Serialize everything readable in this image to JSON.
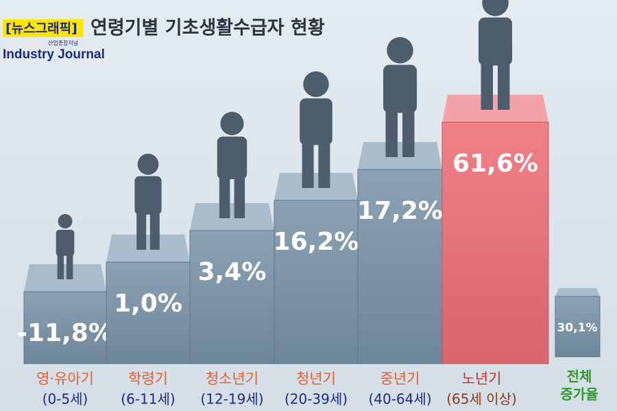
{
  "header": {
    "tag": "[뉴스그래픽]",
    "title": "연령기별 기초생활수급자 현황",
    "logo_sub": "산업종합저널",
    "logo": "Industry Journal"
  },
  "items": [
    {
      "value": "-11,8%",
      "name": "영·유아기",
      "range": "(0-5세)"
    },
    {
      "value": "1,0%",
      "name": "학령기",
      "range": "(6-11세)"
    },
    {
      "value": "3,4%",
      "name": "청소년기",
      "range": "(12-19세)"
    },
    {
      "value": "16,2%",
      "name": "청년기",
      "range": "(20-39세)"
    },
    {
      "value": "17,2%",
      "name": "중년기",
      "range": "(40-64세)"
    },
    {
      "value": "61,6%",
      "name": "노년기",
      "range": "(65세 이상)"
    }
  ],
  "total": {
    "value": "30,1%",
    "name": [
      "전체",
      "증가율"
    ]
  }
}
